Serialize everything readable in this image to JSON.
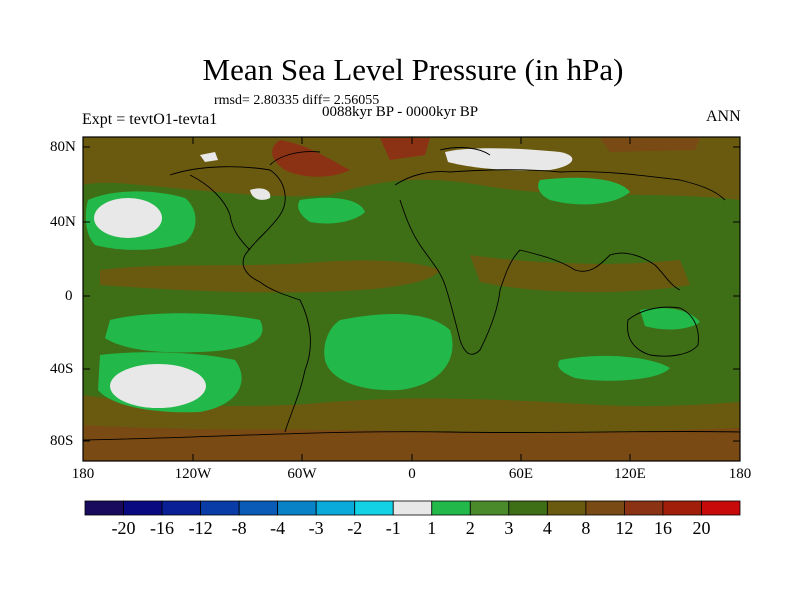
{
  "title": "Mean Sea Level Pressure (in hPa)",
  "stats": "rmsd= 2.80335 diff= 2.56055",
  "period": "0088kyr BP - 0000kyr BP",
  "experiment": "Expt = tevtO1-tevta1",
  "season": "ANN",
  "lat_labels": [
    "80N",
    "40N",
    "0",
    "40S",
    "80S"
  ],
  "lon_labels": [
    "180",
    "120W",
    "60W",
    "0",
    "60E",
    "120E",
    "180"
  ],
  "colorbar": {
    "labels": [
      "-20",
      "-16",
      "-12",
      "-8",
      "-4",
      "-3",
      "-2",
      "-1",
      "1",
      "2",
      "3",
      "4",
      "8",
      "12",
      "16",
      "20"
    ],
    "colors": [
      "#1a0a5e",
      "#0a0a80",
      "#0a1e96",
      "#0a3ca8",
      "#0a5ab8",
      "#0a82c8",
      "#0aaada",
      "#14d2e6",
      "#e8e8e8",
      "#22b84a",
      "#4a8a2a",
      "#3e6e16",
      "#6a5a10",
      "#7a4a14",
      "#8c3214",
      "#a01e0a",
      "#c80a0a"
    ]
  }
}
